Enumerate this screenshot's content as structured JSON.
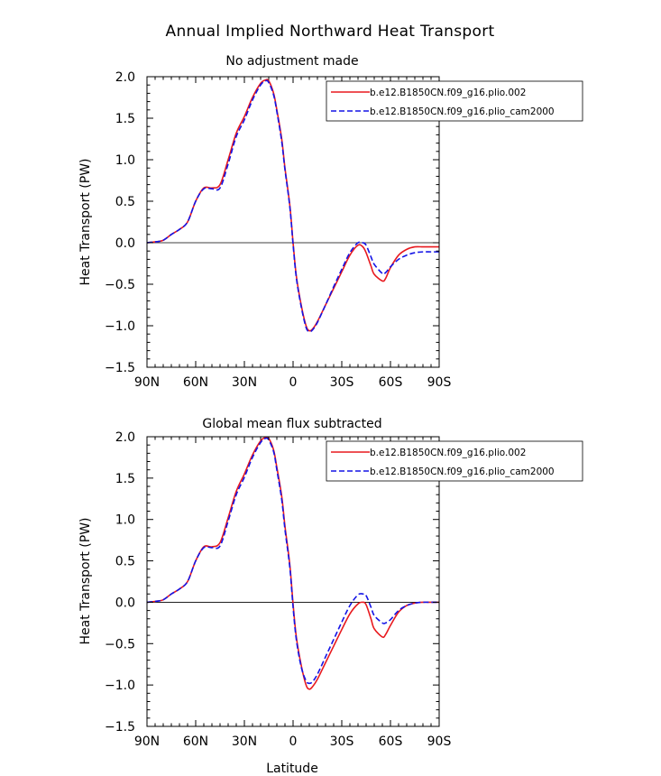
{
  "figure": {
    "title": "Annual Implied Northward Heat Transport",
    "xlabel": "Latitude"
  },
  "colors": {
    "series_a": "#e8191e",
    "series_b": "#1414e6",
    "zero_line": "#000000"
  },
  "chart_data": [
    {
      "type": "line",
      "title": "No adjustment made",
      "xlabel": "",
      "ylabel": "Heat Transport (PW)",
      "xlim": [
        90,
        -90
      ],
      "ylim": [
        -1.5,
        2.0
      ],
      "xticks": [
        90,
        60,
        30,
        0,
        -30,
        -60,
        -90
      ],
      "xticklabels": [
        "90N",
        "60N",
        "30N",
        "0",
        "30S",
        "60S",
        "90S"
      ],
      "yticks": [
        -1.5,
        -1.0,
        -0.5,
        0.0,
        0.5,
        1.0,
        1.5,
        2.0
      ],
      "yticklabels": [
        "−1.5",
        "−1.0",
        "−0.5",
        "0.0",
        "0.5",
        "1.0",
        "1.5",
        "2.0"
      ],
      "legend_position": "top-right",
      "series": [
        {
          "name": "b.e12.B1850CN.f09_g16.plio.002",
          "style": "solid",
          "x": [
            90,
            85,
            80,
            75,
            70,
            65,
            60,
            55,
            50,
            45,
            40,
            35,
            30,
            25,
            20,
            17,
            15,
            12,
            10,
            7,
            5,
            2,
            0,
            -2,
            -5,
            -8,
            -10,
            -12,
            -15,
            -20,
            -25,
            -30,
            -35,
            -40,
            -43,
            -45,
            -48,
            -50,
            -55,
            -57,
            -60,
            -65,
            -70,
            -75,
            -80,
            -85,
            -90
          ],
          "y": [
            0.0,
            0.01,
            0.03,
            0.1,
            0.16,
            0.25,
            0.5,
            0.66,
            0.66,
            0.7,
            1.0,
            1.32,
            1.52,
            1.75,
            1.92,
            1.96,
            1.95,
            1.8,
            1.6,
            1.25,
            0.9,
            0.45,
            0.0,
            -0.4,
            -0.75,
            -1.0,
            -1.06,
            -1.04,
            -0.95,
            -0.75,
            -0.55,
            -0.35,
            -0.15,
            -0.03,
            -0.05,
            -0.12,
            -0.28,
            -0.38,
            -0.46,
            -0.43,
            -0.3,
            -0.15,
            -0.08,
            -0.05,
            -0.05,
            -0.05,
            -0.05
          ]
        },
        {
          "name": "b.e12.B1850CN.f09_g16.plio_cam2000",
          "style": "dashed",
          "x": [
            90,
            85,
            80,
            75,
            70,
            65,
            60,
            55,
            50,
            45,
            40,
            35,
            30,
            25,
            20,
            17,
            15,
            12,
            10,
            7,
            5,
            2,
            0,
            -2,
            -5,
            -8,
            -10,
            -12,
            -15,
            -20,
            -25,
            -30,
            -35,
            -40,
            -43,
            -45,
            -48,
            -50,
            -55,
            -57,
            -60,
            -65,
            -70,
            -75,
            -80,
            -85,
            -90
          ],
          "y": [
            0.0,
            0.01,
            0.03,
            0.1,
            0.16,
            0.25,
            0.5,
            0.65,
            0.65,
            0.66,
            0.95,
            1.28,
            1.48,
            1.72,
            1.9,
            1.95,
            1.93,
            1.78,
            1.58,
            1.22,
            0.88,
            0.43,
            -0.02,
            -0.42,
            -0.77,
            -1.02,
            -1.07,
            -1.05,
            -0.96,
            -0.75,
            -0.53,
            -0.32,
            -0.12,
            0.0,
            0.0,
            -0.03,
            -0.17,
            -0.26,
            -0.37,
            -0.36,
            -0.29,
            -0.2,
            -0.15,
            -0.12,
            -0.11,
            -0.11,
            -0.11
          ]
        }
      ]
    },
    {
      "type": "line",
      "title": "Global mean flux subtracted",
      "xlabel": "Latitude",
      "ylabel": "Heat Transport (PW)",
      "xlim": [
        90,
        -90
      ],
      "ylim": [
        -1.5,
        2.0
      ],
      "xticks": [
        90,
        60,
        30,
        0,
        -30,
        -60,
        -90
      ],
      "xticklabels": [
        "90N",
        "60N",
        "30N",
        "0",
        "30S",
        "60S",
        "90S"
      ],
      "yticks": [
        -1.5,
        -1.0,
        -0.5,
        0.0,
        0.5,
        1.0,
        1.5,
        2.0
      ],
      "yticklabels": [
        "−1.5",
        "−1.0",
        "−0.5",
        "0.0",
        "0.5",
        "1.0",
        "1.5",
        "2.0"
      ],
      "legend_position": "top-right",
      "series": [
        {
          "name": "b.e12.B1850CN.f09_g16.plio.002",
          "style": "solid",
          "x": [
            90,
            85,
            80,
            75,
            70,
            65,
            60,
            55,
            50,
            45,
            40,
            35,
            30,
            25,
            20,
            17,
            15,
            12,
            10,
            7,
            5,
            2,
            0,
            -2,
            -5,
            -8,
            -10,
            -12,
            -15,
            -20,
            -25,
            -30,
            -35,
            -40,
            -43,
            -45,
            -48,
            -50,
            -55,
            -57,
            -60,
            -65,
            -70,
            -75,
            -80,
            -85,
            -90
          ],
          "y": [
            0.0,
            0.01,
            0.03,
            0.1,
            0.16,
            0.25,
            0.5,
            0.67,
            0.67,
            0.72,
            1.02,
            1.34,
            1.55,
            1.78,
            1.95,
            1.99,
            1.98,
            1.84,
            1.63,
            1.28,
            0.92,
            0.45,
            -0.02,
            -0.42,
            -0.76,
            -1.0,
            -1.05,
            -1.02,
            -0.93,
            -0.73,
            -0.53,
            -0.33,
            -0.14,
            -0.02,
            0.0,
            -0.03,
            -0.2,
            -0.32,
            -0.42,
            -0.39,
            -0.28,
            -0.12,
            -0.04,
            -0.01,
            0.0,
            0.0,
            0.0
          ]
        },
        {
          "name": "b.e12.B1850CN.f09_g16.plio_cam2000",
          "style": "dashed",
          "x": [
            90,
            85,
            80,
            75,
            70,
            65,
            60,
            55,
            50,
            45,
            40,
            35,
            30,
            25,
            20,
            17,
            15,
            12,
            10,
            7,
            5,
            2,
            0,
            -2,
            -5,
            -8,
            -10,
            -12,
            -15,
            -20,
            -25,
            -30,
            -35,
            -40,
            -43,
            -45,
            -48,
            -50,
            -55,
            -57,
            -60,
            -65,
            -70,
            -75,
            -80,
            -85,
            -90
          ],
          "y": [
            0.0,
            0.01,
            0.03,
            0.1,
            0.16,
            0.25,
            0.5,
            0.66,
            0.66,
            0.68,
            0.98,
            1.3,
            1.51,
            1.75,
            1.93,
            1.98,
            1.96,
            1.82,
            1.6,
            1.24,
            0.88,
            0.42,
            -0.06,
            -0.45,
            -0.78,
            -0.95,
            -0.98,
            -0.96,
            -0.87,
            -0.66,
            -0.45,
            -0.24,
            -0.04,
            0.09,
            0.1,
            0.08,
            -0.06,
            -0.16,
            -0.25,
            -0.25,
            -0.21,
            -0.1,
            -0.04,
            -0.01,
            0.0,
            0.0,
            0.0
          ]
        }
      ]
    }
  ]
}
